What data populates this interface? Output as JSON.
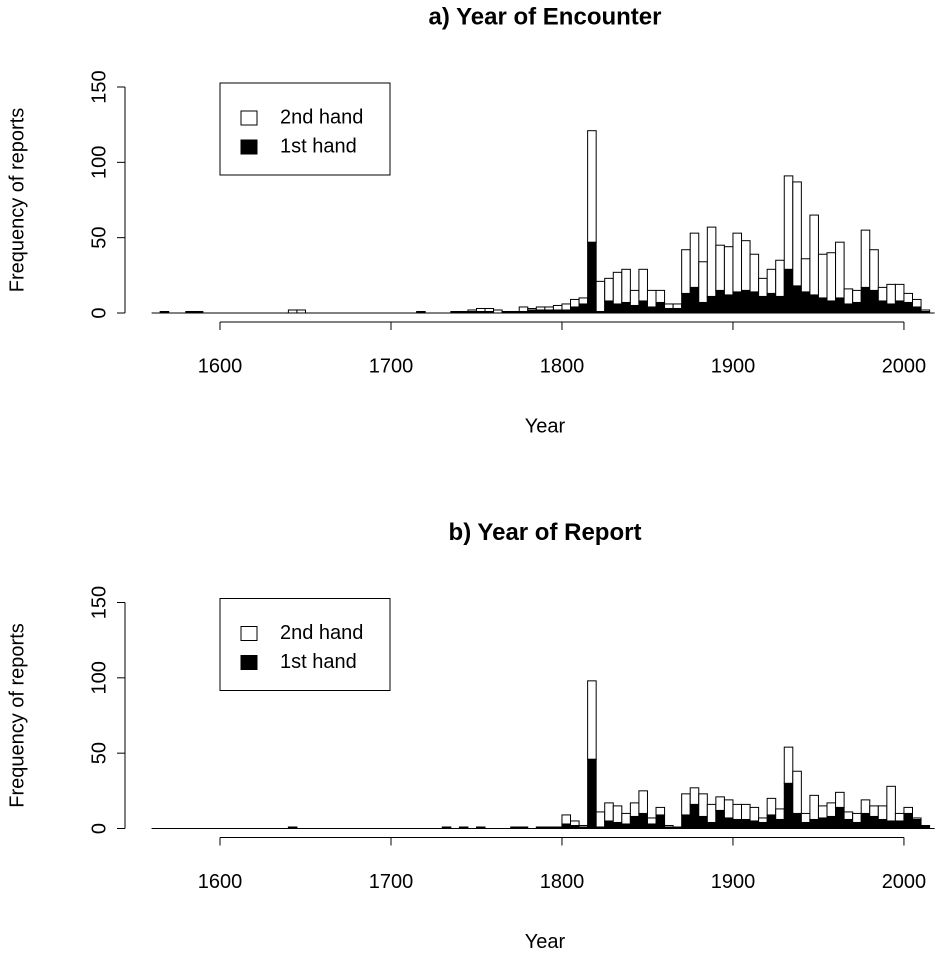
{
  "chart_data": [
    {
      "type": "histogram",
      "title": "a) Year of Encounter",
      "x_label": "Year",
      "y_label": "Frequency of reports",
      "bins": [
        1560,
        1565,
        1570,
        1575,
        1580,
        1585,
        1590,
        1595,
        1600,
        1605,
        1610,
        1615,
        1620,
        1625,
        1630,
        1635,
        1640,
        1645,
        1650,
        1655,
        1660,
        1665,
        1670,
        1675,
        1680,
        1685,
        1690,
        1695,
        1700,
        1705,
        1710,
        1715,
        1720,
        1725,
        1730,
        1735,
        1740,
        1745,
        1750,
        1755,
        1760,
        1765,
        1770,
        1775,
        1780,
        1785,
        1790,
        1795,
        1800,
        1805,
        1810,
        1815,
        1820,
        1825,
        1830,
        1835,
        1840,
        1845,
        1850,
        1855,
        1860,
        1865,
        1870,
        1875,
        1880,
        1885,
        1890,
        1895,
        1900,
        1905,
        1910,
        1915,
        1920,
        1925,
        1930,
        1935,
        1940,
        1945,
        1950,
        1955,
        1960,
        1965,
        1970,
        1975,
        1980,
        1985,
        1990,
        1995,
        2000,
        2005,
        2010,
        2015
      ],
      "series": [
        {
          "name": "1st hand",
          "color": "#000000",
          "values": [
            0,
            1,
            0,
            0,
            1,
            1,
            0,
            0,
            0,
            0,
            0,
            0,
            0,
            0,
            0,
            0,
            0,
            0,
            0,
            0,
            0,
            0,
            0,
            0,
            0,
            0,
            0,
            0,
            0,
            0,
            0,
            1,
            0,
            0,
            0,
            1,
            1,
            1,
            1,
            1,
            0,
            1,
            1,
            1,
            2,
            2,
            2,
            2,
            2,
            4,
            6,
            47,
            1,
            8,
            6,
            7,
            5,
            8,
            4,
            7,
            3,
            3,
            13,
            17,
            7,
            11,
            15,
            12,
            14,
            15,
            14,
            11,
            13,
            11,
            29,
            18,
            14,
            12,
            10,
            8,
            10,
            6,
            7,
            17,
            15,
            8,
            6,
            8,
            7,
            4,
            1
          ]
        },
        {
          "name": "2nd hand",
          "color": "#ffffff",
          "values": [
            0,
            0,
            0,
            0,
            0,
            0,
            0,
            0,
            0,
            0,
            0,
            0,
            0,
            0,
            0,
            0,
            2,
            2,
            0,
            0,
            0,
            0,
            0,
            0,
            0,
            0,
            0,
            0,
            0,
            0,
            0,
            0,
            0,
            0,
            0,
            0,
            0,
            1,
            2,
            2,
            2,
            0,
            0,
            3,
            1,
            2,
            2,
            3,
            4,
            5,
            4,
            74,
            20,
            15,
            21,
            22,
            10,
            21,
            11,
            8,
            3,
            3,
            29,
            36,
            27,
            46,
            30,
            32,
            39,
            33,
            25,
            12,
            16,
            24,
            62,
            69,
            22,
            53,
            29,
            32,
            37,
            10,
            8,
            38,
            27,
            9,
            13,
            11,
            6,
            5,
            1
          ]
        }
      ],
      "xlim": [
        1560,
        2015
      ],
      "xticks": [
        1600,
        1700,
        1800,
        1900,
        2000
      ],
      "ylim": [
        0,
        150
      ],
      "yticks": [
        0,
        50,
        100,
        150
      ],
      "grid": false,
      "legend": "topleft",
      "stacked": true
    },
    {
      "type": "histogram",
      "title": "b) Year of Report",
      "x_label": "Year",
      "y_label": "Frequency of reports",
      "bins": [
        1560,
        1565,
        1570,
        1575,
        1580,
        1585,
        1590,
        1595,
        1600,
        1605,
        1610,
        1615,
        1620,
        1625,
        1630,
        1635,
        1640,
        1645,
        1650,
        1655,
        1660,
        1665,
        1670,
        1675,
        1680,
        1685,
        1690,
        1695,
        1700,
        1705,
        1710,
        1715,
        1720,
        1725,
        1730,
        1735,
        1740,
        1745,
        1750,
        1755,
        1760,
        1765,
        1770,
        1775,
        1780,
        1785,
        1790,
        1795,
        1800,
        1805,
        1810,
        1815,
        1820,
        1825,
        1830,
        1835,
        1840,
        1845,
        1850,
        1855,
        1860,
        1865,
        1870,
        1875,
        1880,
        1885,
        1890,
        1895,
        1900,
        1905,
        1910,
        1915,
        1920,
        1925,
        1930,
        1935,
        1940,
        1945,
        1950,
        1955,
        1960,
        1965,
        1970,
        1975,
        1980,
        1985,
        1990,
        1995,
        2000,
        2005,
        2010,
        2015
      ],
      "series": [
        {
          "name": "1st hand",
          "color": "#000000",
          "values": [
            0,
            0,
            0,
            0,
            0,
            0,
            0,
            0,
            0,
            0,
            0,
            0,
            0,
            0,
            0,
            0,
            1,
            0,
            0,
            0,
            0,
            0,
            0,
            0,
            0,
            0,
            0,
            0,
            0,
            0,
            0,
            0,
            0,
            0,
            1,
            0,
            1,
            0,
            1,
            0,
            0,
            0,
            1,
            1,
            0,
            1,
            1,
            1,
            3,
            2,
            1,
            46,
            1,
            5,
            4,
            3,
            8,
            10,
            3,
            9,
            1,
            1,
            9,
            16,
            8,
            4,
            12,
            7,
            6,
            6,
            5,
            4,
            9,
            6,
            30,
            10,
            4,
            6,
            7,
            8,
            14,
            6,
            4,
            10,
            8,
            6,
            5,
            5,
            10,
            6,
            2
          ]
        },
        {
          "name": "2nd hand",
          "color": "#ffffff",
          "values": [
            0,
            0,
            0,
            0,
            0,
            0,
            0,
            0,
            0,
            0,
            0,
            0,
            0,
            0,
            0,
            0,
            0,
            0,
            0,
            0,
            0,
            0,
            0,
            0,
            0,
            0,
            0,
            0,
            0,
            0,
            0,
            0,
            0,
            0,
            0,
            0,
            0,
            0,
            0,
            0,
            0,
            0,
            0,
            0,
            0,
            0,
            0,
            0,
            6,
            3,
            1,
            52,
            10,
            12,
            11,
            7,
            9,
            15,
            4,
            5,
            1,
            0,
            14,
            11,
            15,
            12,
            9,
            12,
            10,
            10,
            9,
            3,
            11,
            7,
            24,
            28,
            6,
            16,
            8,
            9,
            10,
            5,
            6,
            9,
            7,
            9,
            23,
            5,
            4,
            1,
            0
          ]
        }
      ],
      "xlim": [
        1560,
        2015
      ],
      "xticks": [
        1600,
        1700,
        1800,
        1900,
        2000
      ],
      "ylim": [
        0,
        150
      ],
      "yticks": [
        0,
        50,
        100,
        150
      ],
      "grid": false,
      "legend": "topleft",
      "stacked": true
    }
  ]
}
